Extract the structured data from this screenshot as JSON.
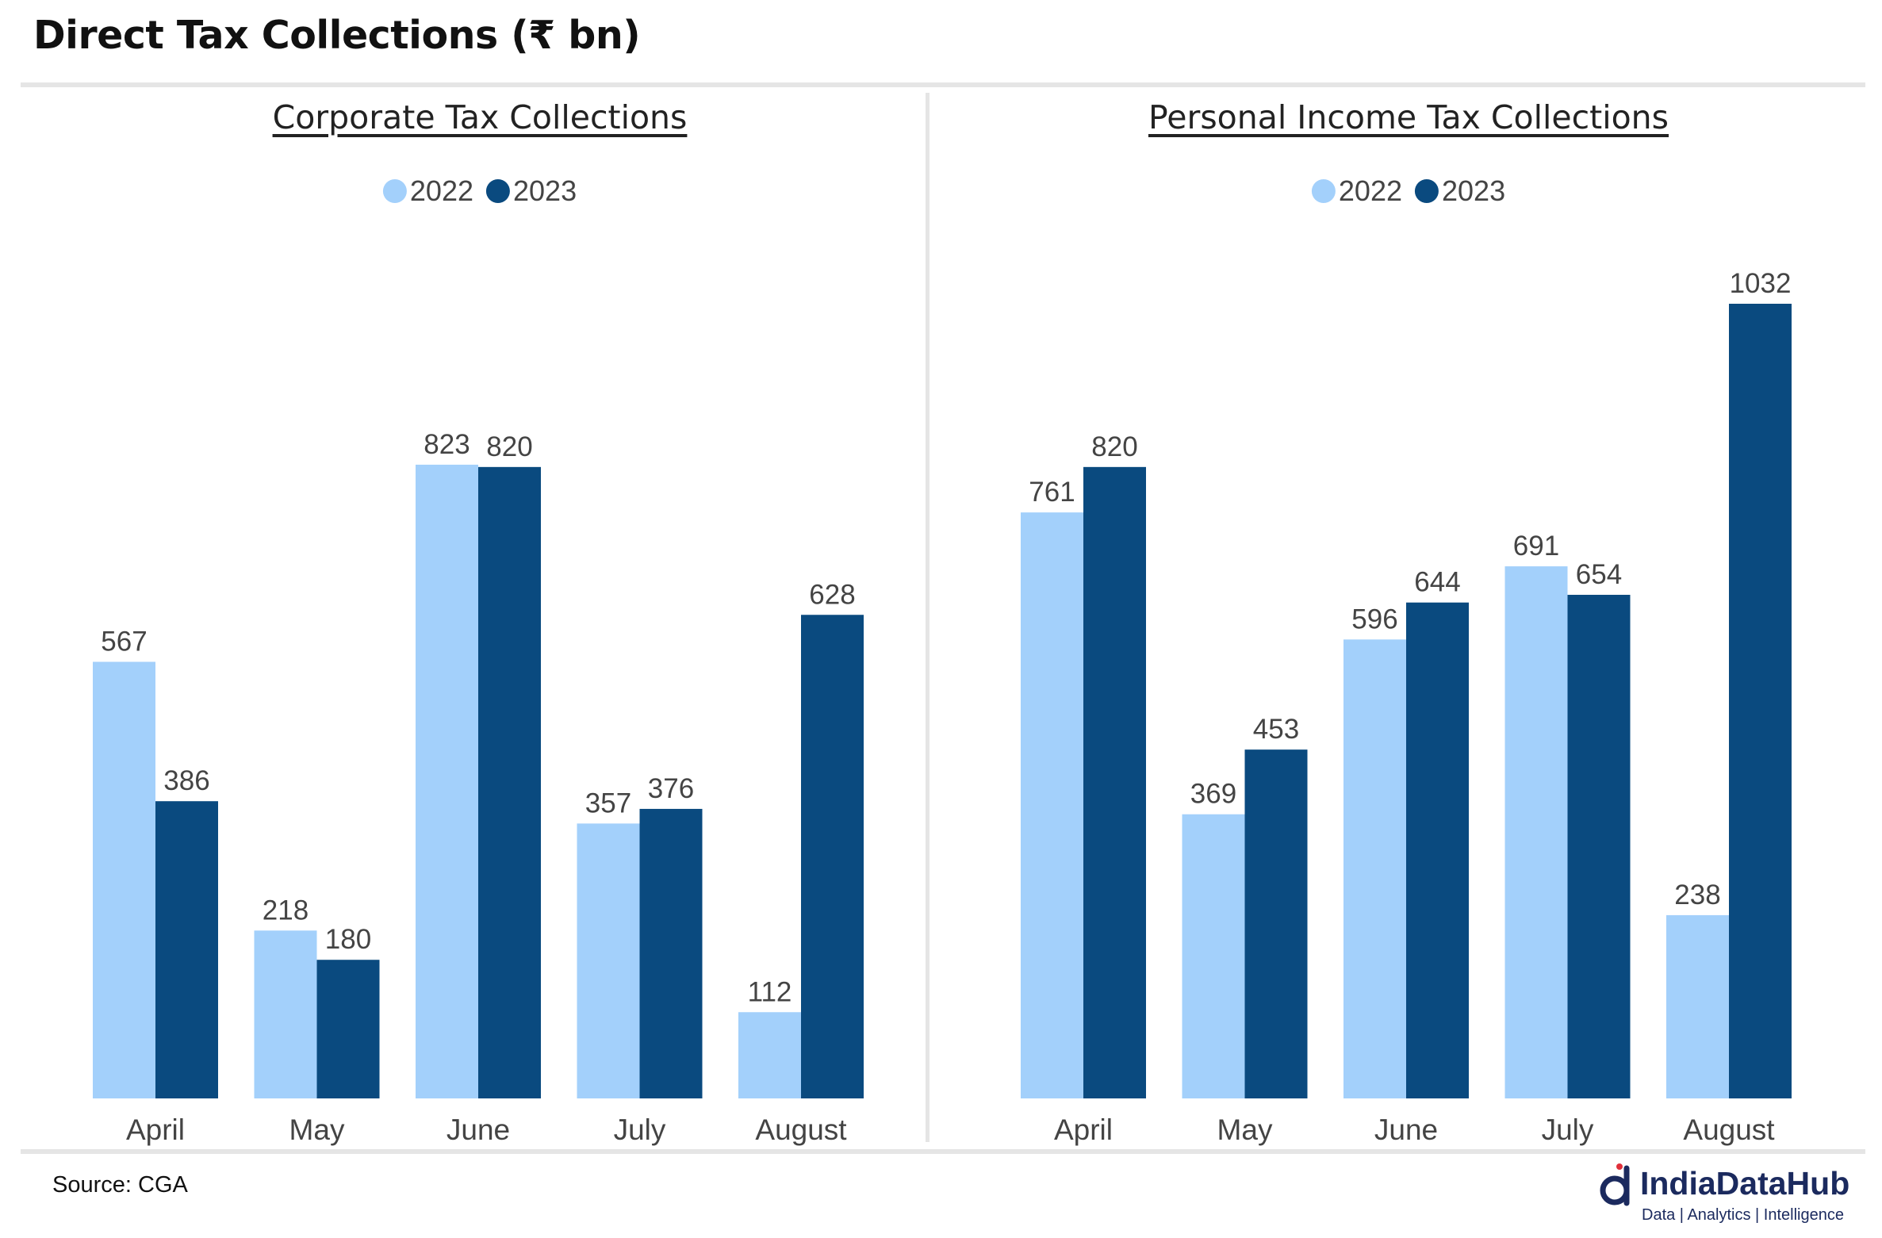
{
  "title": "Direct Tax Collections (₹ bn)",
  "source": "Source: CGA",
  "logo": {
    "name": "IndiaDataHub",
    "tagline": "Data | Analytics | Intelligence"
  },
  "colors": {
    "series_2022": "#a3d0fb",
    "series_2023": "#0a4a7f",
    "rule": "#e5e5e5",
    "brand": "#1b2a5e"
  },
  "chart_data": [
    {
      "type": "bar",
      "title": "Corporate Tax Collections",
      "categories": [
        "April",
        "May",
        "June",
        "July",
        "August"
      ],
      "series": [
        {
          "name": "2022",
          "values": [
            567,
            218,
            823,
            357,
            112
          ]
        },
        {
          "name": "2023",
          "values": [
            386,
            180,
            820,
            376,
            628
          ]
        }
      ],
      "legend_position": "top-center",
      "grid": false,
      "ylim": [
        0,
        1032
      ]
    },
    {
      "type": "bar",
      "title": "Personal Income Tax Collections",
      "categories": [
        "April",
        "May",
        "June",
        "July",
        "August"
      ],
      "series": [
        {
          "name": "2022",
          "values": [
            761,
            369,
            596,
            691,
            238
          ]
        },
        {
          "name": "2023",
          "values": [
            820,
            453,
            644,
            654,
            1032
          ]
        }
      ],
      "legend_position": "top-center",
      "grid": false,
      "ylim": [
        0,
        1032
      ]
    }
  ]
}
